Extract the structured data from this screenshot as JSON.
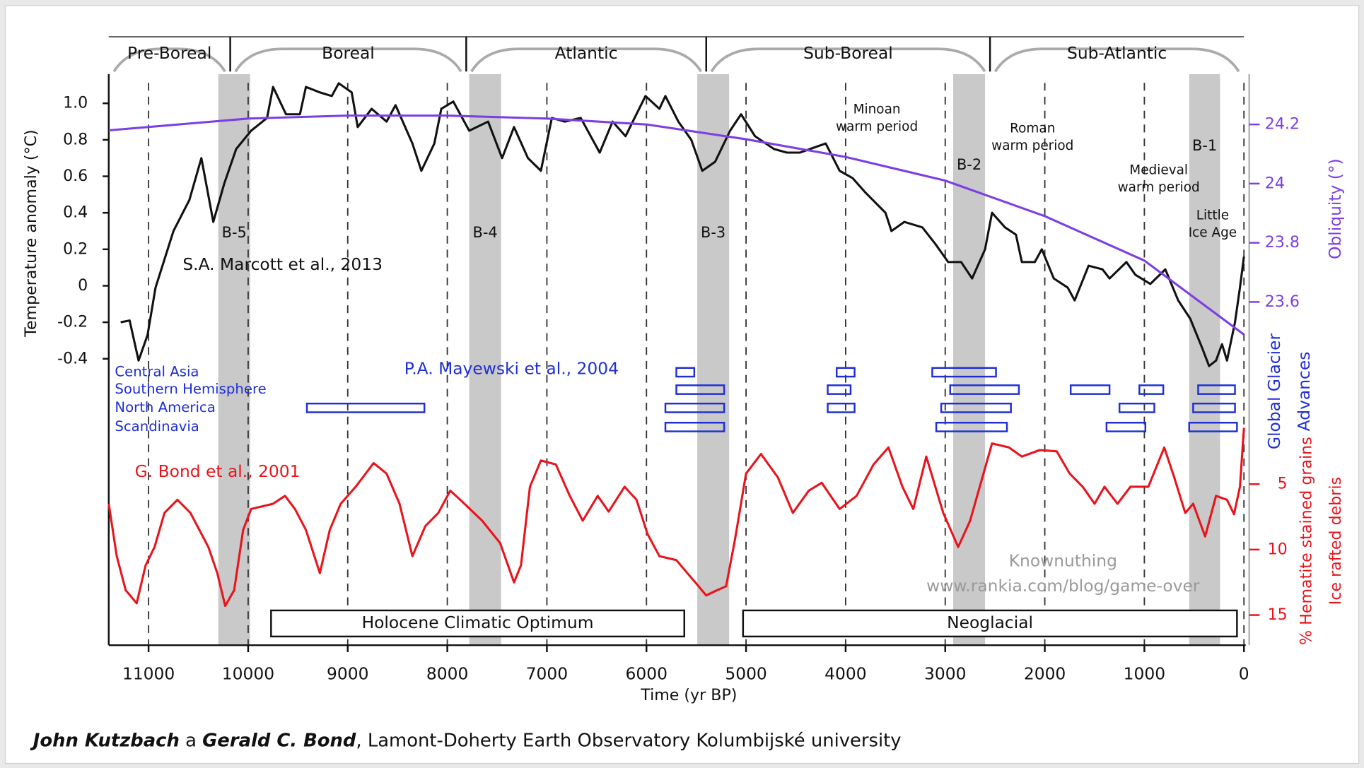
{
  "chart_data": {
    "type": "line",
    "x_label": "Time (yr BP)",
    "y_label": "Temperature anomaly (°C)",
    "y2_label": "Obliquity (°)",
    "glacier_label": [
      "Global Glacier",
      "Advances"
    ],
    "y3_label": [
      "% Hematite stained grains",
      "Ice rafted debris"
    ],
    "xlim": [
      11400,
      0
    ],
    "xticks": [
      11000,
      10000,
      9000,
      8000,
      7000,
      6000,
      5000,
      4000,
      3000,
      2000,
      1000,
      0
    ],
    "grid": true,
    "ylim": [
      -1.97,
      1.16
    ],
    "yticks": [
      {
        "value": 1,
        "label": "1.0"
      },
      0.8,
      0.6,
      0.4,
      0.2,
      0,
      -0.2,
      -0.4
    ],
    "y2lim": [
      22.44,
      24.37
    ],
    "y2ticks": [
      24.2,
      24,
      23.8,
      23.6
    ],
    "y3lim": [
      17.3,
      -26.3
    ],
    "y3ticks": [
      5,
      10,
      15
    ],
    "periods": [
      {
        "name": "Pre-Boreal",
        "start": 11400,
        "end": 10180
      },
      {
        "name": "Boreal",
        "start": 10180,
        "end": 7810
      },
      {
        "name": "Atlantic",
        "start": 7810,
        "end": 5400
      },
      {
        "name": "Sub-Boreal",
        "start": 5400,
        "end": 2550
      },
      {
        "name": "Sub-Atlantic",
        "start": 2550,
        "end": 0
      }
    ],
    "events": [
      {
        "label": "B-5",
        "start": 10300,
        "end": 9980
      },
      {
        "label": "B-4",
        "start": 7780,
        "end": 7460
      },
      {
        "label": "B-3",
        "start": 5490,
        "end": 5170
      },
      {
        "label": "B-2",
        "start": 2920,
        "end": 2600
      },
      {
        "label": "B-1",
        "start": 550,
        "end": 240
      }
    ],
    "phases": [
      {
        "name": "Holocene Climatic Optimum",
        "start": 9770,
        "end": 5620
      },
      {
        "name": "Neoglacial",
        "start": 5030,
        "end": 70
      }
    ],
    "annotations": [
      [
        "Minoan",
        "warm period"
      ],
      [
        "Roman",
        "warm period"
      ],
      [
        "Medieval",
        "warm period"
      ],
      [
        "Little",
        "Ice Age"
      ]
    ],
    "series": [
      {
        "name": "S.A. Marcott et al., 2013",
        "color": "#111111",
        "axis": "y",
        "x": [
          11280,
          11190,
          11100,
          11010,
          10930,
          10750,
          10590,
          10470,
          10350,
          10240,
          10120,
          9970,
          9810,
          9750,
          9620,
          9480,
          9420,
          9280,
          9160,
          9090,
          8960,
          8900,
          8760,
          8610,
          8520,
          8350,
          8260,
          8130,
          8060,
          7940,
          7780,
          7590,
          7450,
          7330,
          7190,
          7060,
          6950,
          6820,
          6660,
          6470,
          6340,
          6210,
          6010,
          5870,
          5810,
          5680,
          5550,
          5440,
          5310,
          5160,
          5050,
          4910,
          4720,
          4590,
          4460,
          4200,
          4060,
          3930,
          3800,
          3600,
          3540,
          3410,
          3230,
          3100,
          2970,
          2840,
          2730,
          2600,
          2530,
          2400,
          2290,
          2230,
          2100,
          2030,
          1910,
          1770,
          1700,
          1560,
          1420,
          1350,
          1180,
          1090,
          940,
          790,
          660,
          540,
          420,
          350,
          280,
          220,
          170,
          90,
          40,
          0
        ],
        "values": [
          -0.2,
          -0.19,
          -0.41,
          -0.27,
          -0.01,
          0.3,
          0.47,
          0.7,
          0.35,
          0.56,
          0.75,
          0.85,
          0.92,
          1.09,
          0.94,
          0.94,
          1.09,
          1.06,
          1.04,
          1.11,
          1.06,
          0.87,
          0.97,
          0.9,
          0.99,
          0.78,
          0.63,
          0.78,
          0.97,
          1.01,
          0.85,
          0.9,
          0.7,
          0.87,
          0.7,
          0.63,
          0.92,
          0.9,
          0.92,
          0.73,
          0.9,
          0.82,
          1.04,
          0.97,
          1.04,
          0.9,
          0.8,
          0.63,
          0.68,
          0.85,
          0.94,
          0.82,
          0.75,
          0.73,
          0.73,
          0.78,
          0.63,
          0.59,
          0.51,
          0.4,
          0.3,
          0.35,
          0.32,
          0.23,
          0.13,
          0.13,
          0.04,
          0.2,
          0.4,
          0.32,
          0.28,
          0.13,
          0.13,
          0.2,
          0.04,
          -0.01,
          -0.08,
          0.11,
          0.09,
          0.04,
          0.13,
          0.06,
          0.01,
          0.09,
          -0.08,
          -0.18,
          -0.34,
          -0.44,
          -0.41,
          -0.32,
          -0.41,
          -0.2,
          -0.01,
          0.16
        ]
      },
      {
        "color": "#7b3fe4",
        "axis": "y2",
        "x": [
          11400,
          10000,
          9000,
          8000,
          7000,
          6000,
          5000,
          4000,
          3000,
          2000,
          1000,
          0
        ],
        "values": [
          24.18,
          24.22,
          24.23,
          24.23,
          24.22,
          24.2,
          24.15,
          24.09,
          24.01,
          23.89,
          23.74,
          23.49
        ]
      },
      {
        "name": "G. Bond et al., 2001",
        "color": "#e8141c",
        "axis": "y3",
        "x": [
          11400,
          11320,
          11230,
          11120,
          11030,
          10940,
          10840,
          10710,
          10580,
          10400,
          10310,
          10230,
          10140,
          10050,
          9970,
          9750,
          9630,
          9530,
          9420,
          9280,
          9180,
          9070,
          8920,
          8740,
          8610,
          8480,
          8350,
          8220,
          8090,
          7970,
          7870,
          7650,
          7470,
          7330,
          7260,
          7170,
          7060,
          6910,
          6770,
          6640,
          6490,
          6380,
          6220,
          6100,
          5990,
          5870,
          5700,
          5590,
          5510,
          5400,
          5290,
          5200,
          5110,
          5000,
          4850,
          4680,
          4530,
          4370,
          4240,
          4060,
          3890,
          3720,
          3570,
          3430,
          3320,
          3190,
          3020,
          2870,
          2750,
          2530,
          2360,
          2230,
          2050,
          1880,
          1750,
          1620,
          1500,
          1400,
          1270,
          1140,
          960,
          800,
          700,
          590,
          510,
          390,
          280,
          170,
          100,
          40,
          0
        ],
        "values": [
          6.5,
          10.5,
          13.1,
          14.1,
          11.2,
          9.8,
          7.2,
          6.2,
          7.2,
          9.8,
          11.8,
          14.3,
          13.1,
          8.5,
          6.9,
          6.5,
          5.9,
          6.9,
          8.5,
          11.8,
          8.5,
          6.5,
          5.2,
          3.4,
          4.2,
          6.5,
          10.5,
          8.2,
          7.2,
          5.5,
          6.2,
          7.8,
          9.5,
          12.5,
          11.2,
          5.2,
          3.2,
          3.5,
          5.9,
          7.8,
          5.9,
          7.1,
          5.2,
          6.2,
          8.8,
          10.5,
          10.8,
          11.8,
          12.5,
          13.5,
          13.1,
          12.8,
          9.2,
          4.2,
          2.7,
          4.5,
          7.2,
          5.5,
          4.9,
          6.9,
          5.9,
          3.5,
          2.2,
          5.2,
          6.9,
          2.9,
          7.2,
          9.8,
          7.8,
          1.9,
          2.2,
          2.9,
          2.4,
          2.5,
          4.2,
          5.2,
          6.5,
          5.2,
          6.5,
          5.2,
          5.2,
          2.2,
          4.5,
          7.2,
          6.5,
          9.0,
          5.9,
          6.2,
          7.3,
          5.2,
          0.7
        ]
      }
    ],
    "glacier_source": "P.A. Mayewski et al., 2004",
    "glacier_color": "#1f2fd6",
    "glacier_advances": [
      {
        "region": "Central Asia",
        "intervals": [
          [
            5700,
            5520
          ],
          [
            4090,
            3910
          ],
          [
            3130,
            2490
          ]
        ]
      },
      {
        "region": "Southern Hemisphere",
        "intervals": [
          [
            5700,
            5220
          ],
          [
            4180,
            3950
          ],
          [
            2950,
            2260
          ],
          [
            1740,
            1350
          ],
          [
            1050,
            810
          ],
          [
            460,
            90
          ]
        ]
      },
      {
        "region": "North America",
        "intervals": [
          [
            9410,
            8230
          ],
          [
            5810,
            5220
          ],
          [
            4180,
            3910
          ],
          [
            3040,
            2340
          ],
          [
            1250,
            900
          ],
          [
            510,
            90
          ]
        ]
      },
      {
        "region": "Scandinavia",
        "intervals": [
          [
            5810,
            5220
          ],
          [
            3090,
            2380
          ],
          [
            1380,
            990
          ],
          [
            550,
            70
          ]
        ]
      }
    ],
    "watermark": [
      "Knownuthing",
      "www.rankia.com/blog/game-over"
    ]
  },
  "caption": [
    "John Kutzbach",
    "a",
    "Gerald C. Bond",
    ", Lamont-Doherty Earth Observatory Kolumbijské university"
  ]
}
